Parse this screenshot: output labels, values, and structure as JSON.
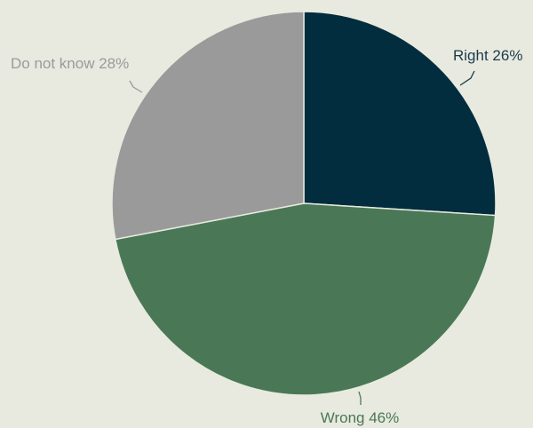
{
  "chart_data": {
    "type": "pie",
    "title": "",
    "slices": [
      {
        "label": "Right",
        "value": 26,
        "display": "Right 26%",
        "color": "#022d3e",
        "label_color": "#1b3a4b"
      },
      {
        "label": "Wrong",
        "value": 46,
        "display": "Wrong 46%",
        "color": "#4a7856",
        "label_color": "#4a7856"
      },
      {
        "label": "Do not know",
        "value": 28,
        "display": "Do not know 28%",
        "color": "#9a9a9a",
        "label_color": "#9a9a9a"
      }
    ],
    "start_angle": "12 o'clock",
    "direction": "clockwise",
    "legend": "none",
    "background": "#e8eadf"
  }
}
